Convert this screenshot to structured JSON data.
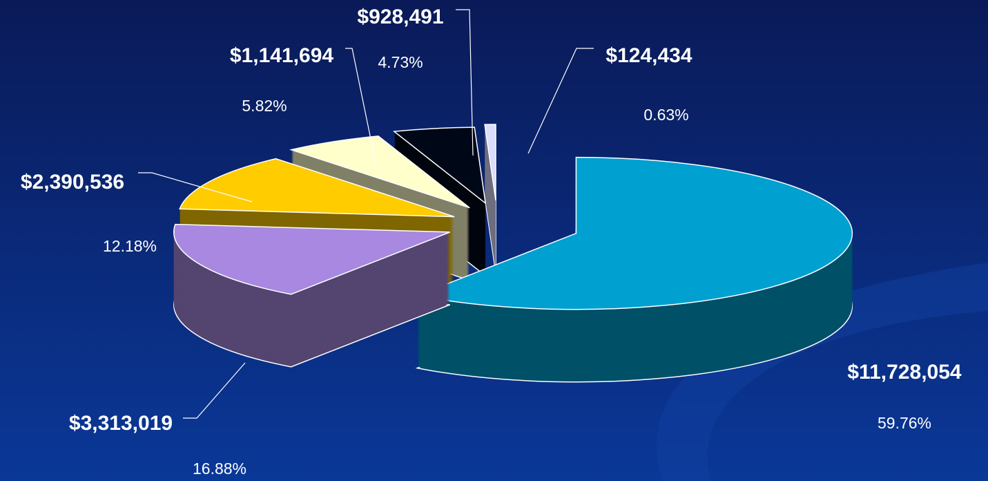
{
  "chart_data": {
    "type": "pie3d",
    "values": [
      11728054,
      3313019,
      2390536,
      1141694,
      928491,
      124434
    ],
    "value_labels": [
      "$11,728,054",
      "$3,313,019",
      "$2,390,536",
      "$1,141,694",
      "$928,491",
      "$124,434"
    ],
    "percents": [
      59.76,
      16.88,
      12.18,
      5.82,
      4.73,
      0.63
    ],
    "percent_labels": [
      "59.76%",
      "16.88%",
      "12.18%",
      "5.82%",
      "4.73%",
      "0.63%"
    ],
    "colors": [
      "#00a0d0",
      "#a888e0",
      "#ffcc00",
      "#ffffcc",
      "#000818",
      "#dcdcff"
    ]
  }
}
